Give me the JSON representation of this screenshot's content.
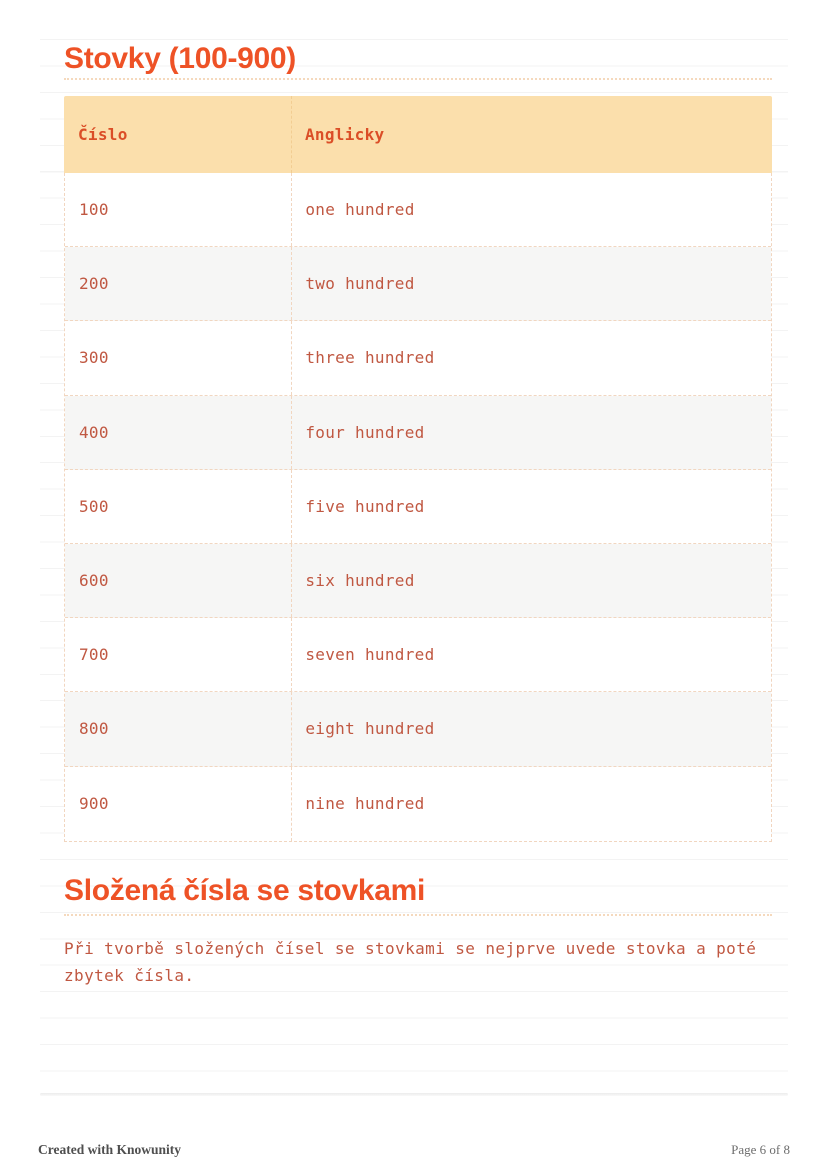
{
  "document": {
    "sections": [
      {
        "title": "Stovky (100-900)"
      },
      {
        "title": "Složená čísla se stovkami",
        "paragraph": "Při tvorbě složených čísel se stovkami se nejprve uvede stovka a poté zbytek čísla."
      }
    ],
    "table": {
      "headers": [
        "Číslo",
        "Anglicky"
      ],
      "rows": [
        [
          "100",
          "one hundred"
        ],
        [
          "200",
          "two hundred"
        ],
        [
          "300",
          "three hundred"
        ],
        [
          "400",
          "four hundred"
        ],
        [
          "500",
          "five hundred"
        ],
        [
          "600",
          "six hundred"
        ],
        [
          "700",
          "seven hundred"
        ],
        [
          "800",
          "eight hundred"
        ],
        [
          "900",
          "nine hundred"
        ]
      ]
    },
    "footer": {
      "left": "Created with Knowunity",
      "right": "Page 6 of 8"
    },
    "colors": {
      "accent": "#EE5226",
      "table_header_bg": "#FBDFAC",
      "table_header_text": "#DB4E27",
      "cell_text": "#C05842",
      "dashed_border": "#F1D6C0",
      "alt_row_bg": "#F6F6F5"
    }
  }
}
